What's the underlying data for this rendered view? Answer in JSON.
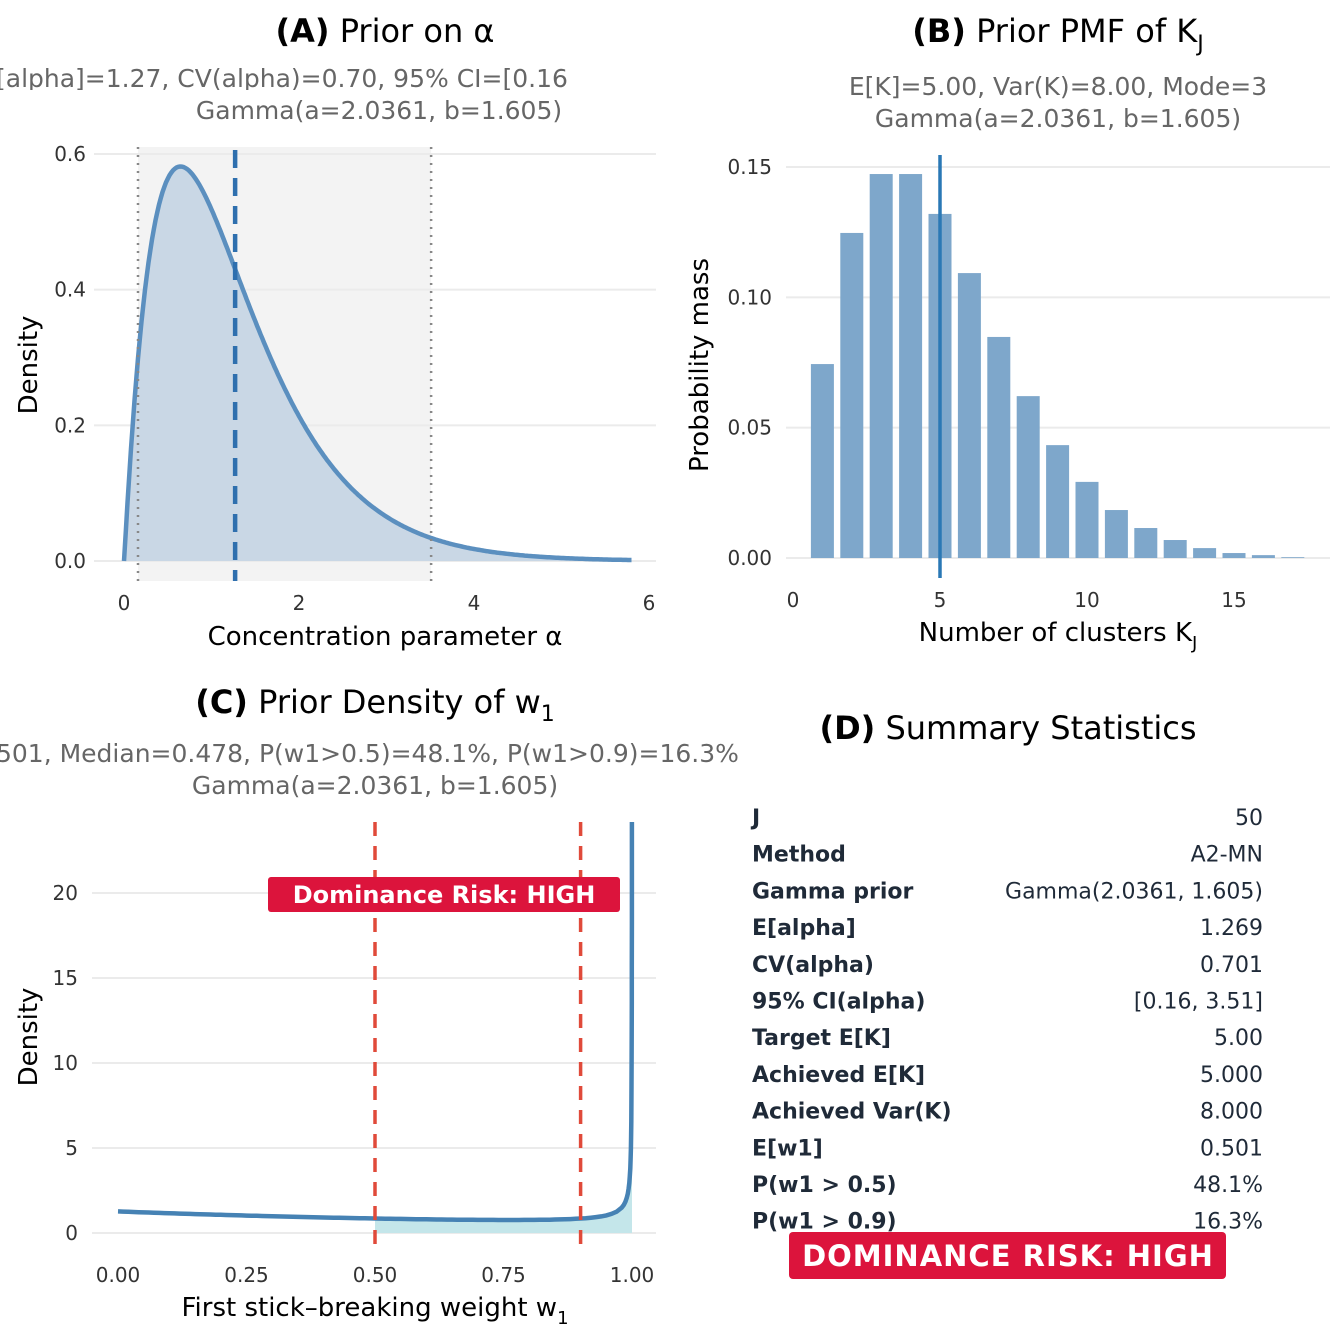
{
  "chart_data": [
    {
      "panel": "A",
      "type": "area",
      "title_bold": "(A)",
      "title": "Prior on α",
      "subtitle_line1": "[alpha]=1.27,  CV(alpha)=0.70,  95% CI=[0.16",
      "subtitle_line2": "Gamma(a=2.0361, b=1.605)",
      "xlabel": "Concentration parameter α",
      "ylabel": "Density",
      "xlim": [
        0,
        6
      ],
      "ylim": [
        0,
        0.6
      ],
      "xticks": [
        "0",
        "2",
        "4",
        "6"
      ],
      "yticks": [
        "0.0",
        "0.2",
        "0.4",
        "0.6"
      ],
      "distribution": {
        "family": "gamma",
        "shape": 2.0361,
        "rate": 1.605,
        "x_max": 5.8
      },
      "mean_line": 1.27,
      "ci": [
        0.16,
        3.51
      ],
      "colors": {
        "curve": "#5b8fbf",
        "fill": "#c9d7e5",
        "ci_band": "#f3f3f3",
        "mean": "#2e6fae"
      }
    },
    {
      "panel": "B",
      "type": "bar",
      "title_bold": "(B)",
      "title": "Prior PMF of K",
      "title_sub": "J",
      "subtitle_line1": "E[K]=5.00,  Var(K)=8.00,  Mode=3",
      "subtitle_line2": "Gamma(a=2.0361, b=1.605)",
      "xlabel": "Number of clusters K",
      "xlabel_sub": "J",
      "ylabel": "Probability mass",
      "xlim": [
        0,
        18
      ],
      "ylim": [
        0,
        0.15
      ],
      "xticks": [
        "0",
        "5",
        "10",
        "15"
      ],
      "yticks": [
        "0.00",
        "0.05",
        "0.10",
        "0.15"
      ],
      "categories": [
        1,
        2,
        3,
        4,
        5,
        6,
        7,
        8,
        9,
        10,
        11,
        12,
        13,
        14,
        15,
        16,
        17
      ],
      "values": [
        0.0744,
        0.1247,
        0.1473,
        0.1473,
        0.132,
        0.1093,
        0.0848,
        0.0621,
        0.0433,
        0.0292,
        0.0184,
        0.0115,
        0.0069,
        0.0038,
        0.0019,
        0.0011,
        0.0003
      ],
      "mean_line": 5,
      "colors": {
        "bar": "#7ea7cb",
        "mean": "#2a78b5"
      }
    },
    {
      "panel": "C",
      "type": "line",
      "title_bold": "(C)",
      "title": "Prior Density of w",
      "title_sub": "1",
      "subtitle_line1": "501,  Median=0.478,  P(w1>0.5)=48.1%,  P(w1>0.9)=16.3%",
      "subtitle_line2": "Gamma(a=2.0361, b=1.605)",
      "xlabel": "First stick–breaking weight w",
      "xlabel_sub": "1",
      "ylabel": "Density",
      "xlim": [
        0,
        1
      ],
      "ylim": [
        0,
        24
      ],
      "xticks": [
        "0.00",
        "0.25",
        "0.50",
        "0.75",
        "1.00"
      ],
      "yticks": [
        "0",
        "5",
        "10",
        "15",
        "20"
      ],
      "thresholds": [
        0.5,
        0.9
      ],
      "shade_from": 0.5,
      "badge": "Dominance Risk: HIGH",
      "colors": {
        "curve": "#4682b4",
        "shade": "#c4e6ea",
        "threshold": "#e04a3a",
        "badge": "#dc143c"
      }
    }
  ],
  "summary": {
    "title_bold": "(D)",
    "title": "Summary Statistics",
    "rows": [
      {
        "label": "J",
        "value": "50"
      },
      {
        "label": "Method",
        "value": "A2-MN"
      },
      {
        "label": "Gamma prior",
        "value": "Gamma(2.0361, 1.605)"
      },
      {
        "label": "E[alpha]",
        "value": "1.269"
      },
      {
        "label": "CV(alpha)",
        "value": "0.701"
      },
      {
        "label": "95% CI(alpha)",
        "value": "[0.16, 3.51]"
      },
      {
        "label": "Target E[K]",
        "value": "5.00"
      },
      {
        "label": "Achieved E[K]",
        "value": "5.000"
      },
      {
        "label": "Achieved Var(K)",
        "value": "8.000"
      },
      {
        "label": "E[w1]",
        "value": "0.501"
      },
      {
        "label": "P(w1 > 0.5)",
        "value": "48.1%"
      },
      {
        "label": "P(w1 > 0.9)",
        "value": "16.3%"
      }
    ],
    "badge": "DOMINANCE RISK: HIGH",
    "badge_color": "#dc143c"
  }
}
